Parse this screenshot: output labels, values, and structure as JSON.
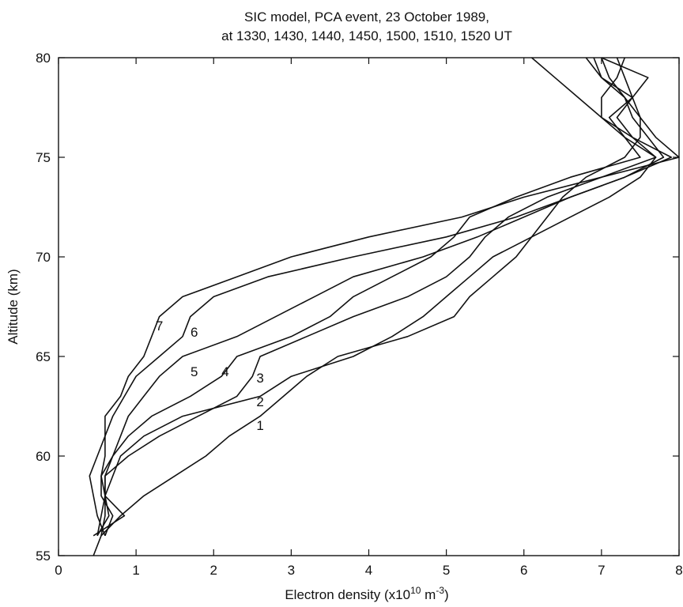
{
  "chart_data": {
    "type": "line",
    "title": "SIC model, PCA event, 23 October 1989,",
    "subtitle": "at 1330, 1430, 1440, 1450, 1500, 1510, 1520 UT",
    "xlabel": "Electron density (x10",
    "xlabel_sup": "10",
    "xlabel_unit": " m",
    "xlabel_unit_sup": "-3",
    "xlabel_close": ")",
    "ylabel": "Altitude (km)",
    "xlim": [
      0,
      8
    ],
    "ylim": [
      55,
      80
    ],
    "xticks": [
      0,
      1,
      2,
      3,
      4,
      5,
      6,
      7,
      8
    ],
    "yticks": [
      55,
      60,
      65,
      70,
      75,
      80
    ],
    "grid": false,
    "series": [
      {
        "name": "1",
        "label_pos": [
          2.6,
          61.3
        ],
        "points": [
          [
            0.45,
            55
          ],
          [
            0.55,
            56
          ],
          [
            0.8,
            57
          ],
          [
            1.1,
            58
          ],
          [
            1.5,
            59
          ],
          [
            1.9,
            60
          ],
          [
            2.2,
            61
          ],
          [
            2.6,
            62
          ],
          [
            2.9,
            63
          ],
          [
            3.2,
            64
          ],
          [
            3.6,
            65
          ],
          [
            4.5,
            66
          ],
          [
            5.1,
            67
          ],
          [
            5.3,
            68
          ],
          [
            5.6,
            69
          ],
          [
            5.9,
            70
          ],
          [
            6.1,
            71
          ],
          [
            6.3,
            72
          ],
          [
            6.5,
            73
          ],
          [
            6.8,
            74
          ],
          [
            7.3,
            75
          ],
          [
            7.5,
            76
          ],
          [
            7.5,
            77
          ],
          [
            7.3,
            78
          ],
          [
            7.0,
            79
          ],
          [
            6.8,
            80
          ]
        ]
      },
      {
        "name": "2",
        "label_pos": [
          2.6,
          62.5
        ],
        "points": [
          [
            0.5,
            56
          ],
          [
            0.55,
            57
          ],
          [
            0.6,
            58
          ],
          [
            0.7,
            59
          ],
          [
            0.8,
            60
          ],
          [
            1.1,
            61
          ],
          [
            1.6,
            62
          ],
          [
            2.6,
            63
          ],
          [
            3.0,
            64
          ],
          [
            3.8,
            65
          ],
          [
            4.3,
            66
          ],
          [
            4.7,
            67
          ],
          [
            5.0,
            68
          ],
          [
            5.3,
            69
          ],
          [
            5.6,
            70
          ],
          [
            6.1,
            71
          ],
          [
            6.6,
            72
          ],
          [
            7.1,
            73
          ],
          [
            7.5,
            74
          ],
          [
            7.7,
            75
          ],
          [
            7.4,
            76
          ],
          [
            7.0,
            77
          ],
          [
            6.7,
            78
          ],
          [
            6.4,
            79
          ],
          [
            6.1,
            80
          ]
        ]
      },
      {
        "name": "3",
        "label_pos": [
          2.6,
          63.7
        ],
        "points": [
          [
            0.45,
            56
          ],
          [
            0.85,
            57
          ],
          [
            0.6,
            58
          ],
          [
            0.6,
            59
          ],
          [
            0.9,
            60
          ],
          [
            1.3,
            61
          ],
          [
            1.8,
            62
          ],
          [
            2.3,
            63
          ],
          [
            2.5,
            64
          ],
          [
            2.6,
            65
          ],
          [
            3.2,
            66
          ],
          [
            3.8,
            67
          ],
          [
            4.5,
            68
          ],
          [
            5.0,
            69
          ],
          [
            5.3,
            70
          ],
          [
            5.5,
            71
          ],
          [
            5.8,
            72
          ],
          [
            6.3,
            73
          ],
          [
            7.0,
            74
          ],
          [
            7.7,
            75
          ],
          [
            7.3,
            76
          ],
          [
            7.0,
            77
          ],
          [
            7.0,
            78
          ],
          [
            7.2,
            79
          ],
          [
            7.3,
            80
          ]
        ]
      },
      {
        "name": "4",
        "label_pos": [
          2.15,
          64.0
        ],
        "points": [
          [
            0.55,
            56
          ],
          [
            0.6,
            57
          ],
          [
            0.6,
            58
          ],
          [
            0.6,
            59
          ],
          [
            0.7,
            60
          ],
          [
            0.9,
            61
          ],
          [
            1.2,
            62
          ],
          [
            1.7,
            63
          ],
          [
            2.1,
            64
          ],
          [
            2.3,
            65
          ],
          [
            3.0,
            66
          ],
          [
            3.5,
            67
          ],
          [
            3.8,
            68
          ],
          [
            4.3,
            69
          ],
          [
            4.8,
            70
          ],
          [
            5.1,
            71
          ],
          [
            5.3,
            72
          ],
          [
            5.9,
            73
          ],
          [
            6.6,
            74
          ],
          [
            7.5,
            75
          ],
          [
            7.3,
            76
          ],
          [
            7.1,
            77
          ],
          [
            7.4,
            78
          ],
          [
            7.6,
            79
          ],
          [
            7.0,
            80
          ]
        ]
      },
      {
        "name": "5",
        "label_pos": [
          1.75,
          64.0
        ],
        "points": [
          [
            0.5,
            56
          ],
          [
            0.65,
            57
          ],
          [
            0.6,
            58
          ],
          [
            0.55,
            59
          ],
          [
            0.7,
            60
          ],
          [
            0.8,
            61
          ],
          [
            0.9,
            62
          ],
          [
            1.1,
            63
          ],
          [
            1.3,
            64
          ],
          [
            1.6,
            65
          ],
          [
            2.3,
            66
          ],
          [
            2.8,
            67
          ],
          [
            3.3,
            68
          ],
          [
            3.8,
            69
          ],
          [
            4.7,
            70
          ],
          [
            5.4,
            71
          ],
          [
            6.0,
            72
          ],
          [
            6.6,
            73
          ],
          [
            7.3,
            74
          ],
          [
            7.8,
            75
          ],
          [
            7.6,
            76
          ],
          [
            7.4,
            77
          ],
          [
            7.3,
            78
          ],
          [
            7.1,
            79
          ],
          [
            7.0,
            80
          ]
        ]
      },
      {
        "name": "6",
        "label_pos": [
          1.75,
          66.0
        ],
        "points": [
          [
            0.6,
            56
          ],
          [
            0.7,
            57
          ],
          [
            0.55,
            58
          ],
          [
            0.55,
            59
          ],
          [
            0.6,
            60
          ],
          [
            0.6,
            61
          ],
          [
            0.7,
            62
          ],
          [
            0.85,
            63
          ],
          [
            1.0,
            64
          ],
          [
            1.3,
            65
          ],
          [
            1.6,
            66
          ],
          [
            1.7,
            67
          ],
          [
            2.0,
            68
          ],
          [
            2.7,
            69
          ],
          [
            3.8,
            70
          ],
          [
            5.0,
            71
          ],
          [
            5.9,
            72
          ],
          [
            6.6,
            73
          ],
          [
            7.3,
            74
          ],
          [
            7.9,
            75
          ],
          [
            7.4,
            76
          ],
          [
            7.2,
            77
          ],
          [
            7.4,
            78
          ],
          [
            7.0,
            79
          ],
          [
            6.9,
            80
          ]
        ]
      },
      {
        "name": "7",
        "label_pos": [
          1.3,
          66.3
        ],
        "points": [
          [
            0.6,
            56
          ],
          [
            0.5,
            57
          ],
          [
            0.45,
            58
          ],
          [
            0.4,
            59
          ],
          [
            0.5,
            60
          ],
          [
            0.6,
            61
          ],
          [
            0.6,
            62
          ],
          [
            0.8,
            63
          ],
          [
            0.9,
            64
          ],
          [
            1.1,
            65
          ],
          [
            1.2,
            66
          ],
          [
            1.3,
            67
          ],
          [
            1.6,
            68
          ],
          [
            2.3,
            69
          ],
          [
            3.0,
            70
          ],
          [
            4.0,
            71
          ],
          [
            5.2,
            72
          ],
          [
            6.0,
            73
          ],
          [
            7.0,
            74
          ],
          [
            8.0,
            75
          ],
          [
            7.7,
            76
          ],
          [
            7.5,
            77
          ],
          [
            7.4,
            78
          ],
          [
            7.3,
            79
          ],
          [
            7.2,
            80
          ]
        ]
      }
    ]
  }
}
